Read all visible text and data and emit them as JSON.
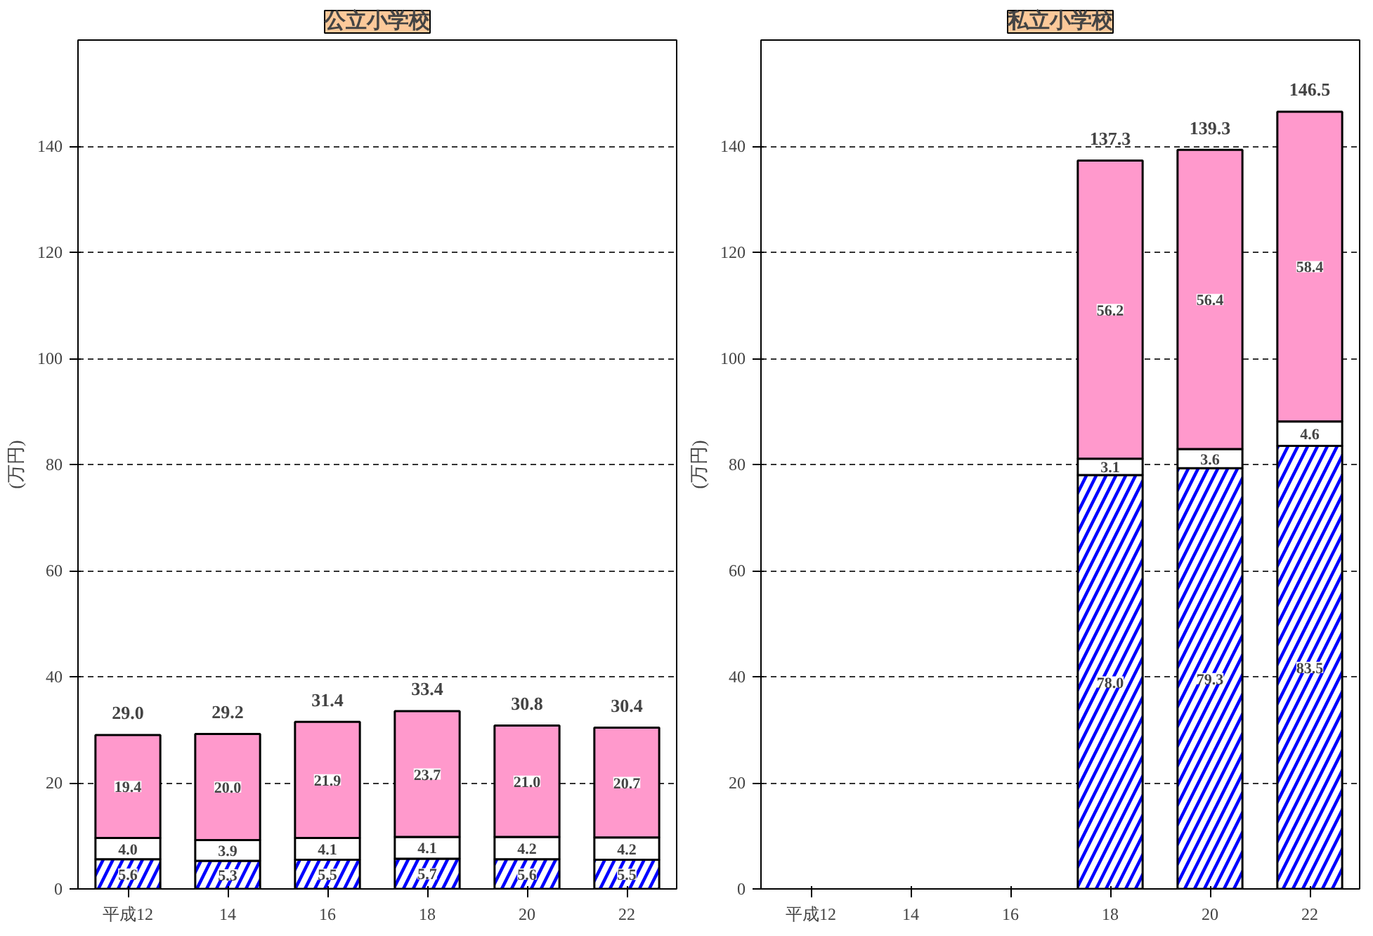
{
  "chart_data": [
    {
      "type": "bar",
      "title": "公立小学校",
      "ylabel": "(万円)",
      "categories": [
        "平成12",
        "14",
        "16",
        "18",
        "20",
        "22"
      ],
      "stacked": true,
      "ylim": [
        0,
        160
      ],
      "yticks": [
        0,
        20,
        40,
        60,
        80,
        100,
        120,
        140
      ],
      "grid": "y",
      "series": [
        {
          "color": "#0000ff",
          "values": [
            5.6,
            5.3,
            5.5,
            5.7,
            5.6,
            5.5
          ],
          "value_labels": [
            "5.6",
            "5.3",
            "5.5",
            "5.7",
            "5.6",
            "5.5"
          ]
        },
        {
          "color": "#ffffff",
          "values": [
            4.0,
            3.9,
            4.1,
            4.1,
            4.2,
            4.2
          ],
          "value_labels": [
            "4.0",
            "3.9",
            "4.1",
            "4.1",
            "4.2",
            "4.2"
          ]
        },
        {
          "color": "#ff99cc",
          "values": [
            19.4,
            20.0,
            21.9,
            23.7,
            21.0,
            20.7
          ],
          "value_labels": [
            "19.4",
            "20.0",
            "21.9",
            "23.7",
            "21.0",
            "20.7"
          ]
        }
      ],
      "totals": [
        "29.0",
        "29.2",
        "31.4",
        "33.4",
        "30.8",
        "30.4"
      ]
    },
    {
      "type": "bar",
      "title": "私立小学校",
      "ylabel": "(万円)",
      "categories": [
        "平成12",
        "14",
        "16",
        "18",
        "20",
        "22"
      ],
      "stacked": true,
      "ylim": [
        0,
        160
      ],
      "yticks": [
        0,
        20,
        40,
        60,
        80,
        100,
        120,
        140
      ],
      "grid": "y",
      "series": [
        {
          "color": "#0000ff",
          "values": [
            null,
            null,
            null,
            78.0,
            79.3,
            83.5
          ],
          "value_labels": [
            null,
            null,
            null,
            "78.0",
            "79.3",
            "83.5"
          ]
        },
        {
          "color": "#ffffff",
          "values": [
            null,
            null,
            null,
            3.1,
            3.6,
            4.6
          ],
          "value_labels": [
            null,
            null,
            null,
            "3.1",
            "3.6",
            "4.6"
          ]
        },
        {
          "color": "#ff99cc",
          "values": [
            null,
            null,
            null,
            56.2,
            56.4,
            58.4
          ],
          "value_labels": [
            null,
            null,
            null,
            "56.2",
            "56.4",
            "58.4"
          ]
        }
      ],
      "totals": [
        null,
        null,
        null,
        "137.3",
        "139.3",
        "146.5"
      ]
    }
  ]
}
